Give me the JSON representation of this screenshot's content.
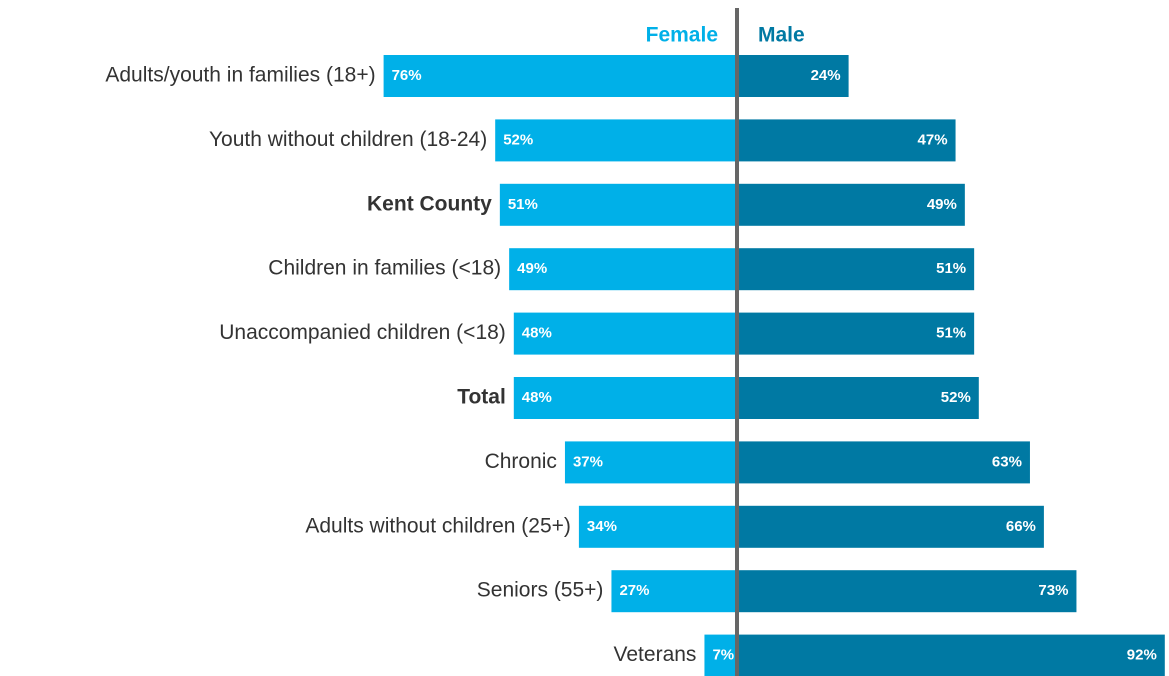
{
  "chart_data": {
    "type": "diverging_bar",
    "categories": [
      "Adults/youth in families (18+)",
      "Youth without children (18-24)",
      "Kent County",
      "Children in families (<18)",
      "Unaccompanied children (<18)",
      "Total",
      "Chronic",
      "Adults without children (25+)",
      "Seniors (55+)",
      "Veterans"
    ],
    "emphasis": [
      false,
      false,
      true,
      false,
      false,
      true,
      false,
      false,
      false,
      false
    ],
    "series": [
      {
        "name": "Female",
        "color": "#00b0e8",
        "values": [
          76,
          52,
          51,
          49,
          48,
          48,
          37,
          34,
          27,
          7
        ],
        "value_labels": [
          "76%",
          "52%",
          "51%",
          "49%",
          "48%",
          "48%",
          "37%",
          "34%",
          "27%",
          "7%"
        ]
      },
      {
        "name": "Male",
        "color": "#0079a3",
        "values": [
          24,
          47,
          49,
          51,
          51,
          52,
          63,
          66,
          73,
          92
        ],
        "value_labels": [
          "24%",
          "47%",
          "49%",
          "51%",
          "51%",
          "52%",
          "63%",
          "66%",
          "73%",
          "92%"
        ]
      }
    ]
  }
}
